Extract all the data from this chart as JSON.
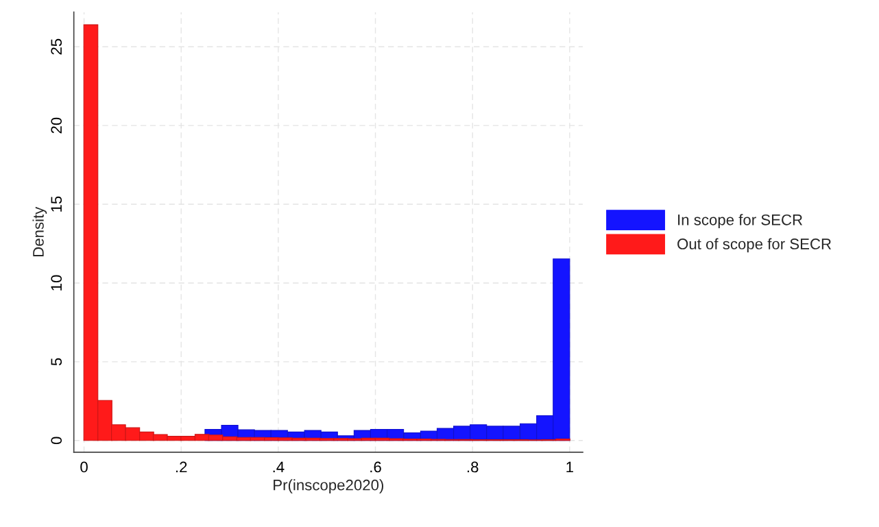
{
  "chart_data": {
    "type": "bar",
    "xlabel": "Pr(inscope2020)",
    "ylabel": "Density",
    "series": [
      {
        "name": "In scope for SECR",
        "color": "#1414ff",
        "x": [
          0.266,
          0.3,
          0.334,
          0.368,
          0.402,
          0.437,
          0.471,
          0.505,
          0.539,
          0.573,
          0.607,
          0.641,
          0.676,
          0.71,
          0.744,
          0.778,
          0.812,
          0.846,
          0.88,
          0.915,
          0.949,
          0.983
        ],
        "values": [
          0.71,
          0.97,
          0.68,
          0.64,
          0.64,
          0.54,
          0.64,
          0.54,
          0.3,
          0.64,
          0.71,
          0.71,
          0.49,
          0.6,
          0.77,
          0.91,
          1.0,
          0.91,
          0.91,
          1.07,
          1.58,
          11.53
        ]
      },
      {
        "name": "Out of scope for SECR",
        "color": "#ff1a1a",
        "x": [
          0.014,
          0.043,
          0.071,
          0.1,
          0.129,
          0.157,
          0.186,
          0.214,
          0.243,
          0.271,
          0.3,
          0.329,
          0.357,
          0.386,
          0.414,
          0.443,
          0.471,
          0.5,
          0.529,
          0.557,
          0.586,
          0.614,
          0.643,
          0.671,
          0.7,
          0.729,
          0.757,
          0.786,
          0.814,
          0.843,
          0.871,
          0.9,
          0.929,
          0.957,
          0.986
        ],
        "values": [
          26.4,
          2.55,
          1.0,
          0.81,
          0.54,
          0.38,
          0.27,
          0.27,
          0.39,
          0.35,
          0.24,
          0.2,
          0.2,
          0.18,
          0.17,
          0.15,
          0.15,
          0.13,
          0.13,
          0.12,
          0.15,
          0.15,
          0.12,
          0.1,
          0.1,
          0.08,
          0.07,
          0.06,
          0.05,
          0.05,
          0.05,
          0.05,
          0.04,
          0.05,
          0.1
        ]
      }
    ],
    "xlim": [
      -0.021,
      1.027
    ],
    "xticks": [
      0,
      {
        "value": 0.2,
        "label": ".2"
      },
      {
        "value": 0.4,
        "label": ".4"
      },
      {
        "value": 0.6,
        "label": ".6"
      },
      {
        "value": 0.8,
        "label": ".8"
      },
      1
    ],
    "ylim": [
      -0.74,
      27.2
    ],
    "yticks": [
      0,
      5,
      10,
      15,
      20,
      25
    ],
    "grid": true,
    "legend": "right"
  }
}
